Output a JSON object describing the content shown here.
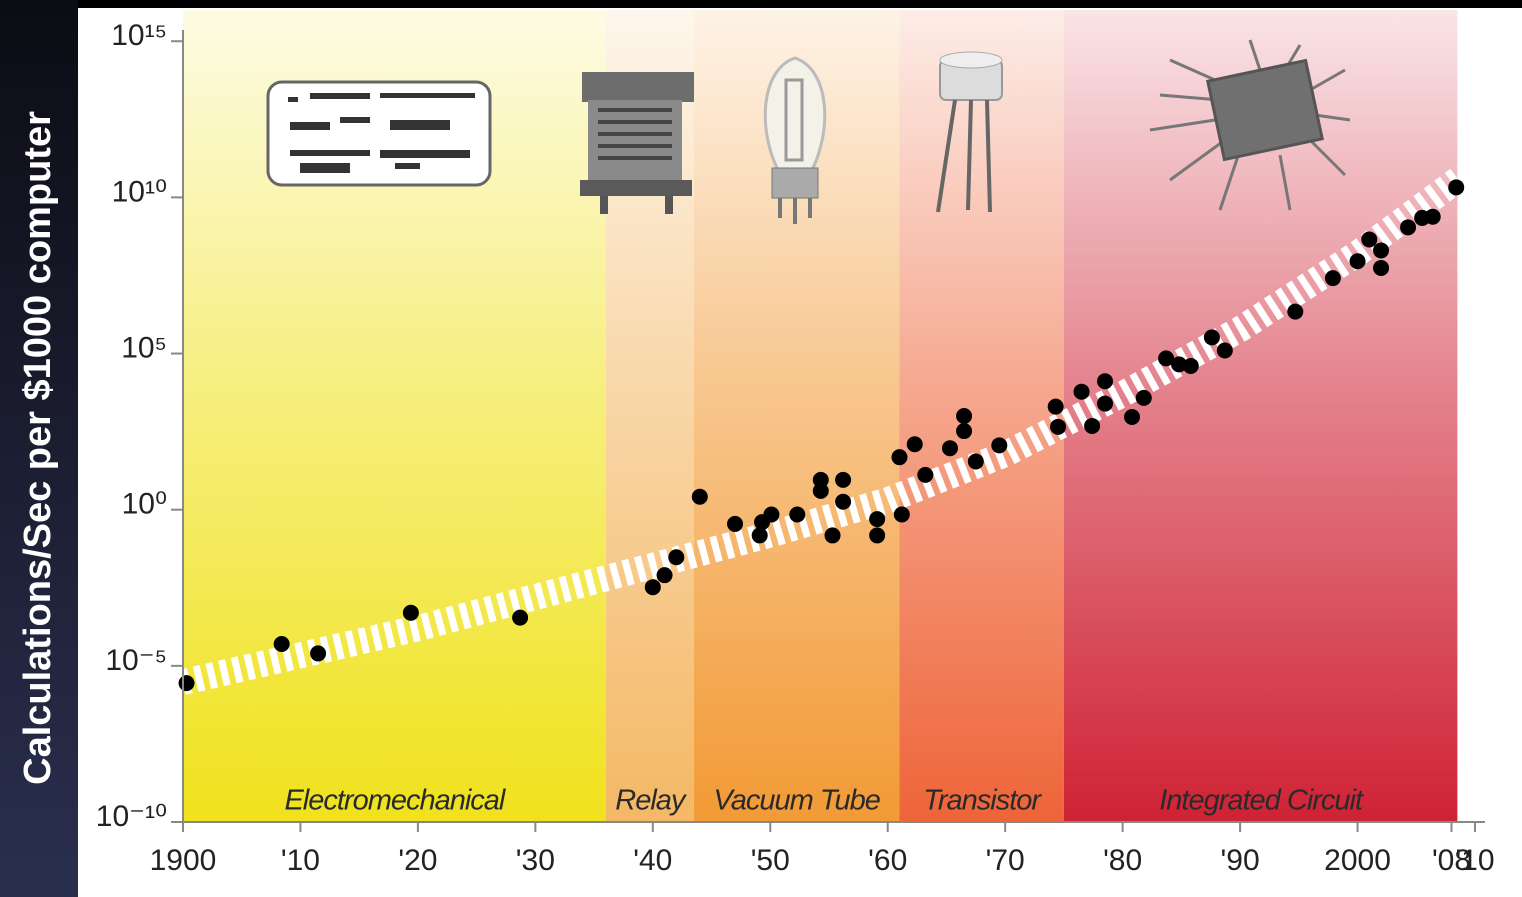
{
  "chart_data": {
    "type": "scatter",
    "y_label": "Calculations/Sec per $1000 computer",
    "log_y": true,
    "xlim": [
      1900,
      2010
    ],
    "ylim": [
      1e-10,
      1e+16
    ],
    "xticks": [
      1900,
      {
        "value": 1910,
        "label": "'10"
      },
      {
        "value": 1920,
        "label": "'20"
      },
      {
        "value": 1930,
        "label": "'30"
      },
      {
        "value": 1940,
        "label": "'40"
      },
      {
        "value": 1950,
        "label": "'50"
      },
      {
        "value": 1960,
        "label": "'60"
      },
      {
        "value": 1970,
        "label": "'70"
      },
      {
        "value": 1980,
        "label": "'80"
      },
      {
        "value": 1990,
        "label": "'90"
      },
      2000,
      {
        "value": 2008,
        "label": "'08"
      },
      {
        "value": 2010,
        "label": "'10"
      }
    ],
    "yticks": [
      {
        "value": 1e-10,
        "label": "10⁻¹⁰"
      },
      {
        "value": 1e-05,
        "label": "10⁻⁵"
      },
      {
        "value": 1,
        "label": "10⁰"
      },
      {
        "value": 100000.0,
        "label": "10⁵"
      },
      {
        "value": 10000000000.0,
        "label": "10¹⁰"
      },
      {
        "value": 1000000000000000.0,
        "label": "10¹⁵"
      }
    ],
    "eras": [
      {
        "name": "Electromechanical",
        "start": 1900,
        "end": 1936,
        "color": "#f0e21c"
      },
      {
        "name": "Relay",
        "start": 1936,
        "end": 1943.5,
        "color": "#f4b865"
      },
      {
        "name": "Vacuum Tube",
        "start": 1943.5,
        "end": 1961,
        "color": "#f29a35"
      },
      {
        "name": "Transistor",
        "start": 1961,
        "end": 1975,
        "color": "#ee6438"
      },
      {
        "name": "Integrated Circuit",
        "start": 1975,
        "end": 2008.5,
        "color": "#cf2234"
      }
    ],
    "color": "#000000",
    "x": [
      1900.3,
      1908.4,
      1911.5,
      1919.4,
      1928.7,
      1940,
      1941,
      1942,
      1944,
      1947,
      1949.1,
      1949.3,
      1950.1,
      1952.3,
      1954.3,
      1954.3,
      1955.3,
      1956.2,
      1956.2,
      1959.1,
      1959.1,
      1961.2,
      1961,
      1962.3,
      1963.2,
      1965.3,
      1966.5,
      1966.5,
      1967.5,
      1969.5,
      1974.3,
      1974.5,
      1976.5,
      1977.4,
      1978.5,
      1978.5,
      1980.8,
      1981.8,
      1983.7,
      1984.8,
      1985.8,
      1987.6,
      1988.7,
      1994.7,
      1997.9,
      2000,
      2001,
      2002,
      2002,
      2004.3,
      2005.5,
      2006.4,
      2008.4
    ],
    "values": [
      2.8e-06,
      5e-05,
      2.5e-05,
      0.0005,
      0.00035,
      0.0033,
      0.008,
      0.03,
      2.6,
      0.35,
      0.15,
      0.4,
      0.7,
      0.7,
      9,
      4,
      0.15,
      9,
      1.8,
      0.5,
      0.15,
      0.7,
      48,
      125,
      13,
      93,
      330,
      1000,
      35,
      115,
      2000,
      450,
      6000,
      480,
      13000,
      2500,
      930,
      3800,
      70000,
      45000,
      40000,
      330000,
      125000,
      2200000.0,
      26000000.0,
      90000000.0,
      450000000.0,
      200000000.0,
      55000000.0,
      1100000000.0,
      2200000000.0,
      2400000000.0,
      21000000000.0
    ],
    "trend": {
      "x": [
        1900,
        1920,
        1940,
        1950,
        1960,
        1970,
        1980,
        1990,
        2000,
        2009
      ],
      "values": [
        3e-06,
        0.00016,
        0.016,
        0.16,
        2,
        60,
        5000,
        600000.0,
        160000000.0,
        50000000000.0
      ],
      "color": "#ffffff"
    }
  }
}
